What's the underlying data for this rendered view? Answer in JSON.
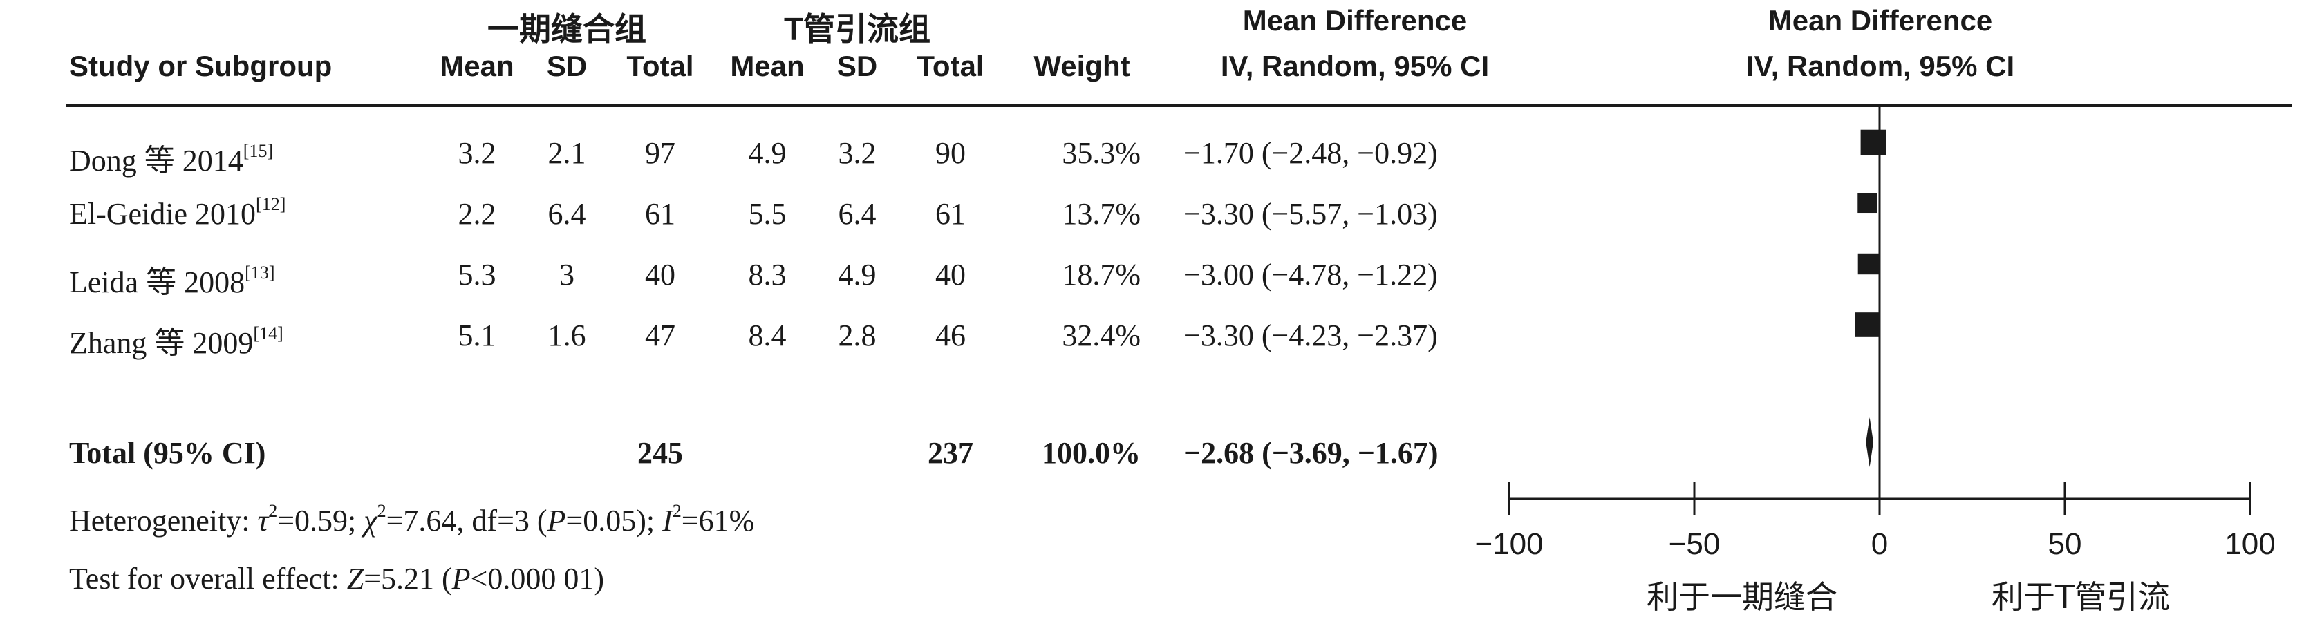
{
  "header": {
    "group1_title": "一期缝合组",
    "group2_title": "T管引流组",
    "col_study": "Study or Subgroup",
    "col_mean1": "Mean",
    "col_sd1": "SD",
    "col_total1": "Total",
    "col_mean2": "Mean",
    "col_sd2": "SD",
    "col_total2": "Total",
    "col_weight": "Weight",
    "md_title": "Mean Difference",
    "md_method": "IV, Random, 95% CI",
    "plot_title": "Mean Difference",
    "plot_method": "IV, Random, 95% CI"
  },
  "studies": [
    {
      "name": "Dong 等 2014",
      "ref": "[15]",
      "mean1": "3.2",
      "sd1": "2.1",
      "total1": "97",
      "mean2": "4.9",
      "sd2": "3.2",
      "total2": "90",
      "weight": "35.3%",
      "ci_text": "−1.70 (−2.48, −0.92)"
    },
    {
      "name": "El-Geidie 2010",
      "ref": "[12]",
      "mean1": "2.2",
      "sd1": "6.4",
      "total1": "61",
      "mean2": "5.5",
      "sd2": "6.4",
      "total2": "61",
      "weight": "13.7%",
      "ci_text": "−3.30 (−5.57, −1.03)"
    },
    {
      "name": "Leida 等 2008",
      "ref": "[13]",
      "mean1": "5.3",
      "sd1": "3",
      "total1": "40",
      "mean2": "8.3",
      "sd2": "4.9",
      "total2": "40",
      "weight": "18.7%",
      "ci_text": "−3.00 (−4.78, −1.22)"
    },
    {
      "name": "Zhang 等 2009",
      "ref": "[14]",
      "mean1": "5.1",
      "sd1": "1.6",
      "total1": "47",
      "mean2": "8.4",
      "sd2": "2.8",
      "total2": "46",
      "weight": "32.4%",
      "ci_text": "−3.30 (−4.23, −2.37)"
    }
  ],
  "total": {
    "label": "Total (95% CI)",
    "total1": "245",
    "total2": "237",
    "weight": "100.0%",
    "ci_text": "−2.68 (−3.69, −1.67)"
  },
  "heterogeneity": {
    "label": "Heterogeneity: ",
    "tau_sym": "τ",
    "tau_val": "=0.59; ",
    "chi_sym": "χ",
    "chi_val": "=7.64, df=3 (",
    "p_sym": "P",
    "p_val": "=0.05); ",
    "i_sym": "I",
    "i_val": "=61%"
  },
  "overall": {
    "label": "Test for overall effect: ",
    "z_sym": "Z",
    "z_val": "=5.21 (",
    "p_sym": "P",
    "p_val": "<0.000 01)"
  },
  "chart_data": {
    "type": "forest",
    "xlim": [
      -100,
      100
    ],
    "ticks": [
      -100,
      -50,
      0,
      50,
      100
    ],
    "tick_labels": [
      "−100",
      "−50",
      "0",
      "50",
      "100"
    ],
    "favours_left": "利于一期缝合",
    "favours_right": "利于T管引流",
    "studies": [
      {
        "md": -1.7,
        "lo": -2.48,
        "hi": -0.92,
        "weight": 35.3
      },
      {
        "md": -3.3,
        "lo": -5.57,
        "hi": -1.03,
        "weight": 13.7
      },
      {
        "md": -3.0,
        "lo": -4.78,
        "hi": -1.22,
        "weight": 18.7
      },
      {
        "md": -3.3,
        "lo": -4.23,
        "hi": -2.37,
        "weight": 32.4
      }
    ],
    "pooled": {
      "md": -2.68,
      "lo": -3.69,
      "hi": -1.67
    }
  }
}
